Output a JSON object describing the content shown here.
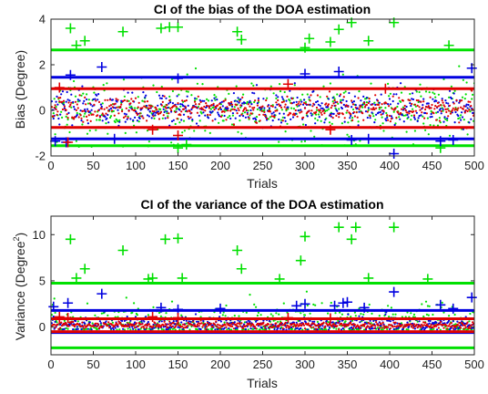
{
  "chart_data": [
    {
      "type": "scatter",
      "title": "CI of the bias of the DOA estimation",
      "xlabel": "Trials",
      "ylabel": "Bias (Degree)",
      "xlim": [
        0,
        500
      ],
      "ylim": [
        -2,
        4
      ],
      "xticks": [
        0,
        50,
        100,
        150,
        200,
        250,
        300,
        350,
        400,
        450,
        500
      ],
      "yticks": [
        -2,
        0,
        2,
        4
      ],
      "grid": false,
      "box": true,
      "series": [
        {
          "color": "#00e000",
          "cloud": {
            "center": 0.0,
            "spread": 1.3,
            "min": -1.6,
            "max": 2.6
          },
          "bounds": [
            2.65,
            -1.55
          ],
          "outliers": [
            [
              23,
              3.6
            ],
            [
              30,
              2.85
            ],
            [
              40,
              3.05
            ],
            [
              85,
              3.45
            ],
            [
              130,
              3.6
            ],
            [
              140,
              3.65
            ],
            [
              150,
              3.65
            ],
            [
              220,
              3.45
            ],
            [
              225,
              3.1
            ],
            [
              300,
              2.75
            ],
            [
              305,
              3.15
            ],
            [
              330,
              3.0
            ],
            [
              340,
              3.55
            ],
            [
              355,
              3.85
            ],
            [
              375,
              3.05
            ],
            [
              405,
              3.85
            ],
            [
              470,
              2.85
            ],
            [
              150,
              -1.65
            ],
            [
              160,
              -1.5
            ],
            [
              460,
              -1.65
            ]
          ]
        },
        {
          "color": "#0000e0",
          "cloud": {
            "center": 0.1,
            "spread": 0.75,
            "min": -1.2,
            "max": 1.4
          },
          "bounds": [
            1.45,
            -1.25
          ],
          "outliers": [
            [
              5,
              -1.35
            ],
            [
              18,
              -1.4
            ],
            [
              23,
              1.55
            ],
            [
              60,
              1.9
            ],
            [
              75,
              -1.25
            ],
            [
              150,
              1.4
            ],
            [
              300,
              1.6
            ],
            [
              340,
              1.7
            ],
            [
              355,
              -1.3
            ],
            [
              375,
              -1.25
            ],
            [
              405,
              -1.9
            ],
            [
              460,
              -1.35
            ],
            [
              475,
              -1.3
            ],
            [
              497,
              1.85
            ]
          ]
        },
        {
          "color": "#e00000",
          "cloud": {
            "center": 0.05,
            "spread": 0.55,
            "min": -0.8,
            "max": 1.0
          },
          "bounds": [
            0.95,
            -0.75
          ],
          "outliers": [
            [
              10,
              1.0
            ],
            [
              20,
              -1.4
            ],
            [
              120,
              -0.85
            ],
            [
              150,
              -1.1
            ],
            [
              280,
              1.15
            ],
            [
              330,
              -0.85
            ],
            [
              395,
              0.95
            ]
          ]
        }
      ]
    },
    {
      "type": "scatter",
      "title": "CI of the variance of the DOA estimation",
      "xlabel": "Trials",
      "ylabel": "Variance (Degree",
      "ylabel_superscript": "2",
      "ylabel_close": ")",
      "xlim": [
        0,
        500
      ],
      "ylim": [
        -3,
        12
      ],
      "xticks": [
        0,
        50,
        100,
        150,
        200,
        250,
        300,
        350,
        400,
        450,
        500
      ],
      "yticks": [
        0,
        5,
        10
      ],
      "grid": false,
      "box": true,
      "series": [
        {
          "color": "#00e000",
          "cloud": {
            "center": 0.5,
            "spread": 2.2,
            "min": -0.3,
            "max": 4.6
          },
          "bounds": [
            4.75,
            -2.25
          ],
          "outliers": [
            [
              23,
              9.5
            ],
            [
              30,
              5.3
            ],
            [
              40,
              6.3
            ],
            [
              85,
              8.3
            ],
            [
              115,
              5.2
            ],
            [
              120,
              5.3
            ],
            [
              135,
              9.5
            ],
            [
              150,
              9.6
            ],
            [
              155,
              5.3
            ],
            [
              220,
              8.3
            ],
            [
              225,
              6.3
            ],
            [
              270,
              5.2
            ],
            [
              295,
              7.2
            ],
            [
              300,
              9.8
            ],
            [
              340,
              10.8
            ],
            [
              355,
              9.5
            ],
            [
              360,
              10.8
            ],
            [
              375,
              5.3
            ],
            [
              405,
              10.8
            ],
            [
              445,
              5.2
            ]
          ]
        },
        {
          "color": "#0000e0",
          "cloud": {
            "center": 0.3,
            "spread": 0.8,
            "min": -0.3,
            "max": 1.8
          },
          "bounds": [
            1.8,
            -0.6
          ],
          "outliers": [
            [
              3,
              2.2
            ],
            [
              20,
              2.6
            ],
            [
              60,
              3.6
            ],
            [
              130,
              2.1
            ],
            [
              150,
              1.9
            ],
            [
              200,
              2.0
            ],
            [
              290,
              2.3
            ],
            [
              300,
              2.5
            ],
            [
              335,
              2.3
            ],
            [
              345,
              2.6
            ],
            [
              350,
              2.7
            ],
            [
              370,
              2.1
            ],
            [
              405,
              3.8
            ],
            [
              460,
              2.4
            ],
            [
              475,
              2.0
            ],
            [
              497,
              3.2
            ]
          ]
        },
        {
          "color": "#e00000",
          "cloud": {
            "center": 0.2,
            "spread": 0.35,
            "min": -0.3,
            "max": 0.9
          },
          "bounds": [
            0.9,
            -0.5
          ],
          "outliers": [
            [
              10,
              1.1
            ],
            [
              20,
              1.0
            ],
            [
              120,
              1.1
            ],
            [
              150,
              1.0
            ],
            [
              280,
              1.0
            ],
            [
              330,
              0.95
            ]
          ]
        }
      ]
    }
  ]
}
